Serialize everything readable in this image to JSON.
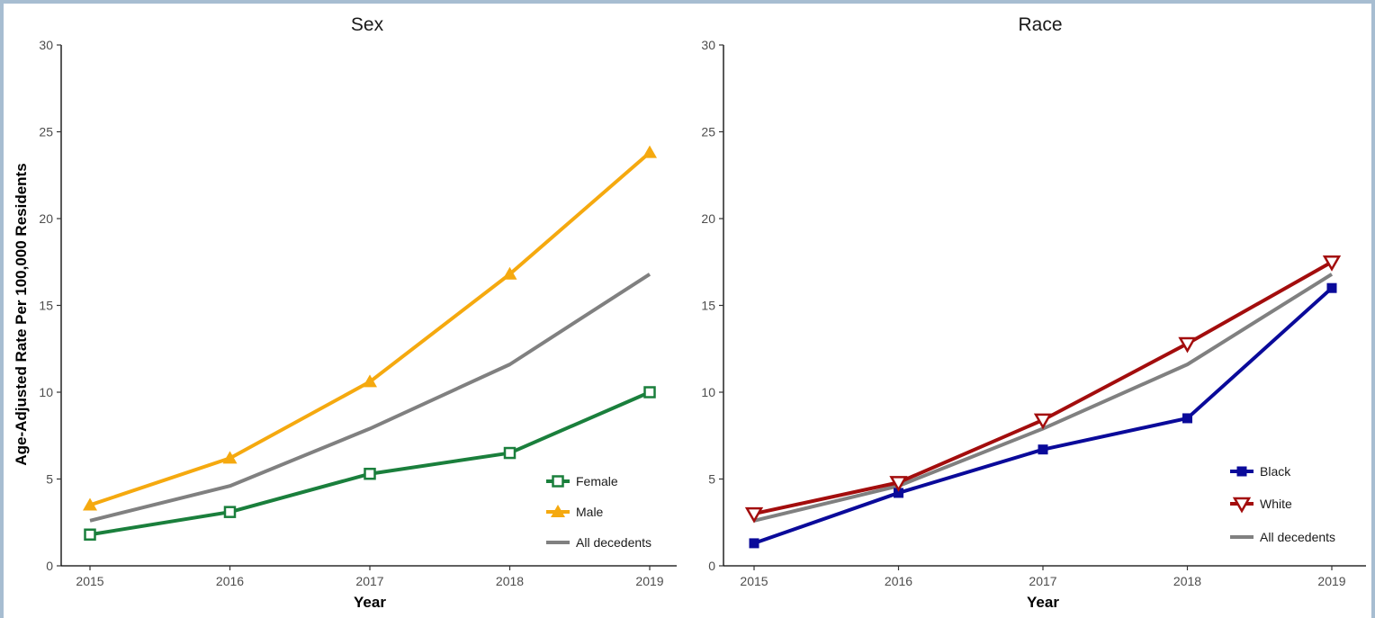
{
  "chart_data": [
    {
      "type": "line",
      "title": "Sex",
      "xlabel": "Year",
      "ylabel": "Age-Adjusted Rate Per 100,000 Residents",
      "x": [
        2015,
        2016,
        2017,
        2018,
        2019
      ],
      "ylim": [
        0,
        30
      ],
      "yticks": [
        0,
        5,
        10,
        15,
        20,
        25,
        30
      ],
      "grid": false,
      "legend": "bottom-right",
      "series": [
        {
          "name": "Female",
          "color": "#1a7f3c",
          "marker": "open-square",
          "values": [
            1.8,
            3.1,
            5.3,
            6.5,
            10.0
          ]
        },
        {
          "name": "Male",
          "color": "#f5a90f",
          "marker": "filled-triangle",
          "values": [
            3.5,
            6.2,
            10.6,
            16.8,
            23.8
          ]
        },
        {
          "name": "All decedents",
          "color": "#808080",
          "marker": "none",
          "values": [
            2.6,
            4.6,
            7.9,
            11.6,
            16.8
          ]
        }
      ]
    },
    {
      "type": "line",
      "title": "Race",
      "xlabel": "Year",
      "ylabel": "",
      "x": [
        2015,
        2016,
        2017,
        2018,
        2019
      ],
      "ylim": [
        0,
        30
      ],
      "yticks": [
        0,
        5,
        10,
        15,
        20,
        25,
        30
      ],
      "grid": false,
      "legend": "bottom-right",
      "series": [
        {
          "name": "Black",
          "color": "#0a0a9a",
          "marker": "filled-square",
          "values": [
            1.3,
            4.2,
            6.7,
            8.5,
            16.0
          ]
        },
        {
          "name": "White",
          "color": "#a30d0d",
          "marker": "open-triangle-down",
          "values": [
            3.0,
            4.8,
            8.4,
            12.8,
            17.5
          ]
        },
        {
          "name": "All decedents",
          "color": "#808080",
          "marker": "none",
          "values": [
            2.6,
            4.6,
            7.9,
            11.6,
            16.8
          ]
        }
      ]
    }
  ]
}
